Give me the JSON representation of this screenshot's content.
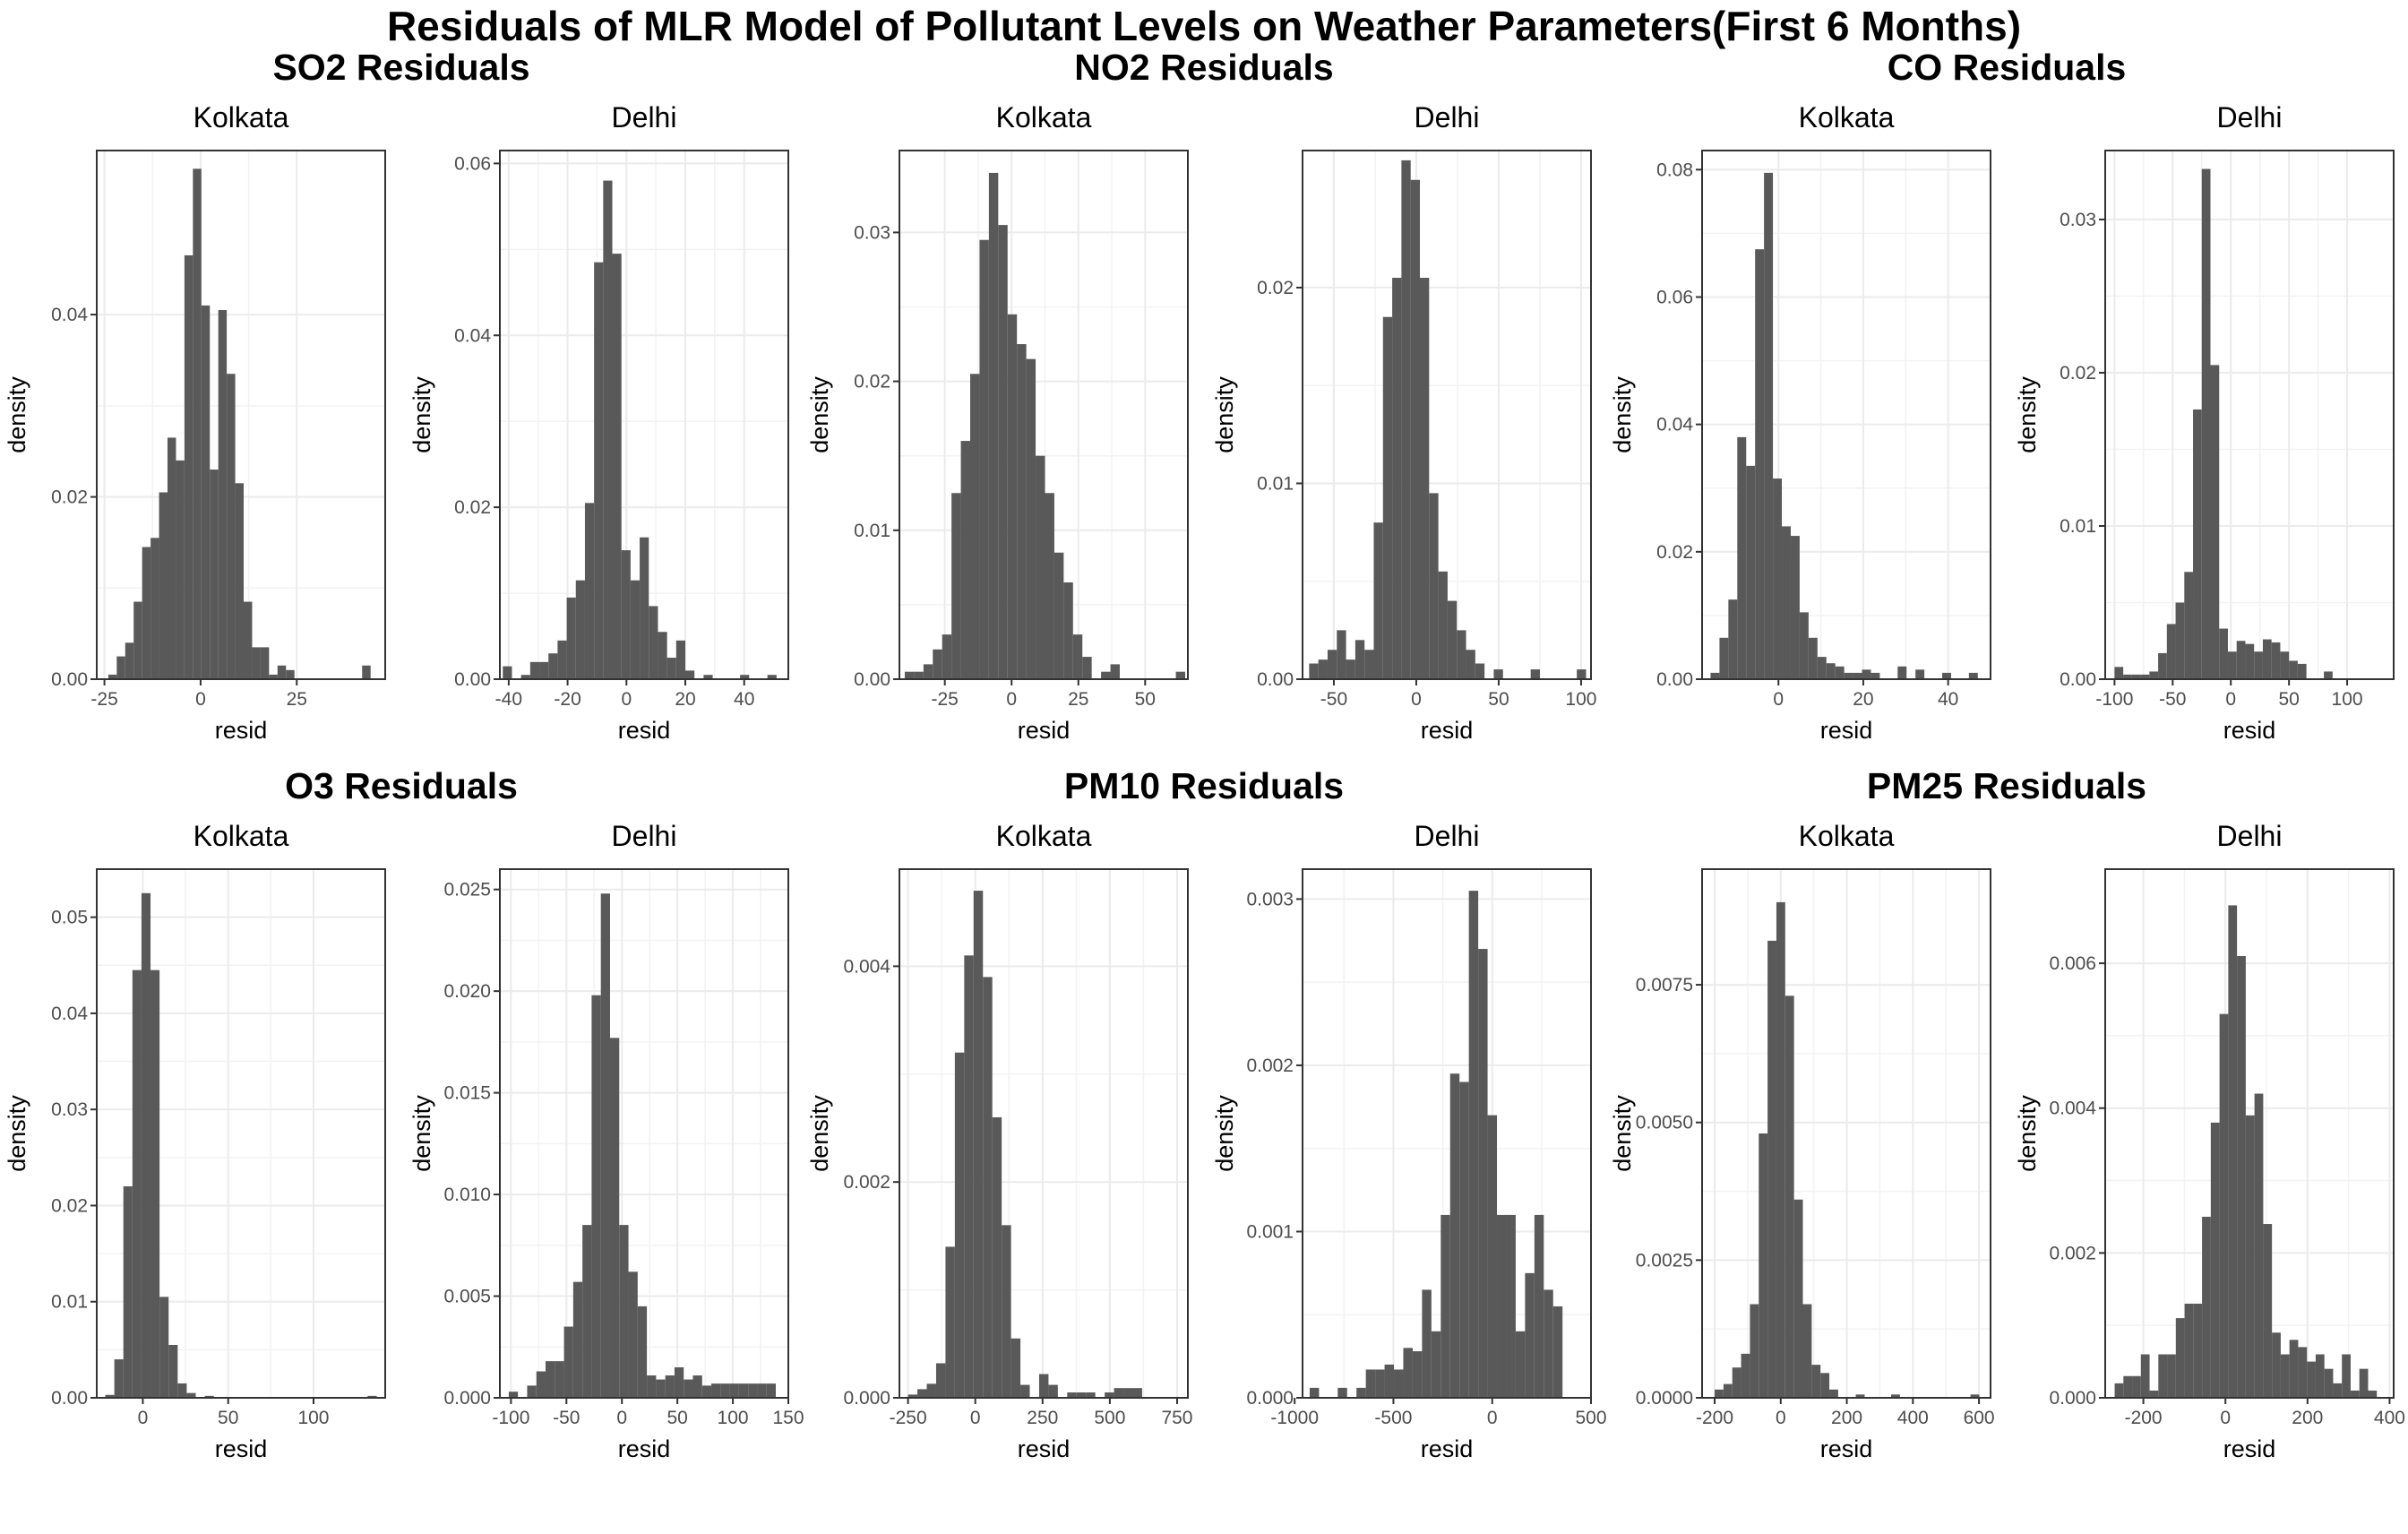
{
  "title": "Residuals of MLR Model of Pollutant Levels on Weather Parameters(First 6 Months)",
  "chart_data": [
    {
      "group_title": "SO2 Residuals",
      "panels": [
        {
          "type": "bar",
          "title": "Kolkata",
          "xlabel": "resid",
          "ylabel": "density",
          "xlim": [
            -27,
            48
          ],
          "ylim": [
            0,
            0.058
          ],
          "xticks": [
            -25,
            0,
            25
          ],
          "xtick_labels": [
            "-25",
            "0",
            "25"
          ],
          "yticks": [
            0,
            0.02,
            0.04
          ],
          "ytick_labels": [
            "0.00",
            "0.02",
            "0.04"
          ],
          "bin_start": -24,
          "bin_width": 2.2,
          "values": [
            0.0005,
            0.0025,
            0.004,
            0.0085,
            0.0145,
            0.0155,
            0.0205,
            0.0265,
            0.024,
            0.0465,
            0.056,
            0.041,
            0.023,
            0.0405,
            0.0335,
            0.0215,
            0.0085,
            0.0035,
            0.0035,
            0.0005,
            0.0015,
            0.001,
            0,
            0,
            0,
            0,
            0,
            0,
            0,
            0,
            0.0015
          ]
        },
        {
          "type": "bar",
          "title": "Delhi",
          "xlabel": "resid",
          "ylabel": "density",
          "xlim": [
            -43,
            55
          ],
          "ylim": [
            0,
            0.0615
          ],
          "xticks": [
            -40,
            -20,
            0,
            20,
            40
          ],
          "xtick_labels": [
            "-40",
            "-20",
            "0",
            "20",
            "40"
          ],
          "yticks": [
            0,
            0.02,
            0.04,
            0.06
          ],
          "ytick_labels": [
            "0.00",
            "0.02",
            "0.04",
            "0.06"
          ],
          "bin_start": -42,
          "bin_width": 3.1,
          "values": [
            0.0015,
            0,
            0.0005,
            0.002,
            0.002,
            0.003,
            0.0045,
            0.0095,
            0.0115,
            0.0205,
            0.0485,
            0.058,
            0.0495,
            0.015,
            0.0115,
            0.0165,
            0.0085,
            0.0055,
            0.0025,
            0.0045,
            0.001,
            0,
            0.0005,
            0,
            0,
            0,
            0.0005,
            0,
            0,
            0.0005
          ]
        }
      ]
    },
    {
      "group_title": "NO2 Residuals",
      "panels": [
        {
          "type": "bar",
          "title": "Kolkata",
          "xlabel": "resid",
          "ylabel": "density",
          "xlim": [
            -42,
            66
          ],
          "ylim": [
            0,
            0.0355
          ],
          "xticks": [
            -25,
            0,
            25,
            50
          ],
          "xtick_labels": [
            "-25",
            "0",
            "25",
            "50"
          ],
          "yticks": [
            0,
            0.01,
            0.02,
            0.03
          ],
          "ytick_labels": [
            "0.00",
            "0.01",
            "0.02",
            "0.03"
          ],
          "bin_start": -40,
          "bin_width": 3.5,
          "values": [
            0.0005,
            0.0005,
            0.001,
            0.002,
            0.003,
            0.0125,
            0.016,
            0.0205,
            0.0295,
            0.034,
            0.0305,
            0.0245,
            0.0225,
            0.0215,
            0.015,
            0.0125,
            0.0085,
            0.0065,
            0.003,
            0.0015,
            0,
            0.0005,
            0.001,
            0,
            0,
            0,
            0,
            0,
            0,
            0.0005
          ]
        },
        {
          "type": "bar",
          "title": "Delhi",
          "xlabel": "resid",
          "ylabel": "density",
          "xlim": [
            -69,
            106
          ],
          "ylim": [
            0,
            0.027
          ],
          "xticks": [
            -50,
            0,
            50,
            100
          ],
          "xtick_labels": [
            "-50",
            "0",
            "50",
            "100"
          ],
          "yticks": [
            0,
            0.01,
            0.02
          ],
          "ytick_labels": [
            "0.00",
            "0.01",
            "0.02"
          ],
          "bin_start": -65,
          "bin_width": 5.6,
          "values": [
            0.0008,
            0.001,
            0.0015,
            0.0025,
            0.001,
            0.002,
            0.0015,
            0.008,
            0.0185,
            0.0205,
            0.0265,
            0.0255,
            0.0205,
            0.0095,
            0.0055,
            0.004,
            0.0025,
            0.0015,
            0.0008,
            0,
            0.0005,
            0,
            0,
            0,
            0.0005,
            0,
            0,
            0,
            0,
            0.0005
          ]
        }
      ]
    },
    {
      "group_title": "CO Residuals",
      "panels": [
        {
          "type": "bar",
          "title": "Kolkata",
          "xlabel": "resid",
          "ylabel": "density",
          "xlim": [
            -18,
            50
          ],
          "ylim": [
            0,
            0.083
          ],
          "xticks": [
            0,
            20,
            40
          ],
          "xtick_labels": [
            "0",
            "20",
            "40"
          ],
          "yticks": [
            0,
            0.02,
            0.04,
            0.06,
            0.08
          ],
          "ytick_labels": [
            "0.00",
            "0.02",
            "0.04",
            "0.06",
            "0.08"
          ],
          "bin_start": -16,
          "bin_width": 2.1,
          "values": [
            0.001,
            0.0065,
            0.0125,
            0.038,
            0.0335,
            0.0675,
            0.0795,
            0.0315,
            0.024,
            0.0225,
            0.0105,
            0.0065,
            0.0035,
            0.0025,
            0.002,
            0.001,
            0.001,
            0.0015,
            0.001,
            0,
            0,
            0.002,
            0,
            0.0015,
            0,
            0,
            0.001,
            0,
            0,
            0.001
          ]
        },
        {
          "type": "bar",
          "title": "Delhi",
          "xlabel": "resid",
          "ylabel": "density",
          "xlim": [
            -108,
            140
          ],
          "ylim": [
            0,
            0.0345
          ],
          "xticks": [
            -100,
            -50,
            0,
            50,
            100
          ],
          "xtick_labels": [
            "-100",
            "-50",
            "0",
            "50",
            "100"
          ],
          "yticks": [
            0,
            0.01,
            0.02,
            0.03
          ],
          "ytick_labels": [
            "0.00",
            "0.01",
            "0.02",
            "0.03"
          ],
          "bin_start": -100,
          "bin_width": 7.5,
          "values": [
            0.0008,
            0.0003,
            0.0003,
            0.0003,
            0.0005,
            0.0017,
            0.0036,
            0.005,
            0.007,
            0.0176,
            0.0333,
            0.0205,
            0.0033,
            0.0018,
            0.0025,
            0.0023,
            0.0018,
            0.0026,
            0.0024,
            0.0018,
            0.0012,
            0.001,
            0,
            0,
            0.0005
          ]
        }
      ]
    },
    {
      "group_title": "O3 Residuals",
      "panels": [
        {
          "type": "bar",
          "title": "Kolkata",
          "xlabel": "resid",
          "ylabel": "density",
          "xlim": [
            -27,
            142
          ],
          "ylim": [
            0,
            0.055
          ],
          "xticks": [
            0,
            50,
            100
          ],
          "xtick_labels": [
            "0",
            "50",
            "100"
          ],
          "yticks": [
            0,
            0.01,
            0.02,
            0.03,
            0.04,
            0.05
          ],
          "ytick_labels": [
            "0.00",
            "0.01",
            "0.02",
            "0.03",
            "0.04",
            "0.05"
          ],
          "bin_start": -22,
          "bin_width": 5.3,
          "values": [
            0.0003,
            0.004,
            0.022,
            0.0445,
            0.0525,
            0.0445,
            0.0105,
            0.0055,
            0.0015,
            0.0005,
            0,
            0.0002,
            0,
            0,
            0,
            0,
            0,
            0,
            0,
            0,
            0,
            0,
            0,
            0,
            0,
            0,
            0,
            0,
            0,
            0.0002
          ]
        },
        {
          "type": "bar",
          "title": "Delhi",
          "xlabel": "resid",
          "ylabel": "density",
          "xlim": [
            -110,
            150
          ],
          "ylim": [
            0,
            0.026
          ],
          "xticks": [
            -100,
            -50,
            0,
            50,
            100,
            150
          ],
          "xtick_labels": [
            "-100",
            "-50",
            "0",
            "50",
            "100",
            "150"
          ],
          "yticks": [
            0,
            0.005,
            0.01,
            0.015,
            0.02,
            0.025
          ],
          "ytick_labels": [
            "0.000",
            "0.005",
            "0.010",
            "0.015",
            "0.020",
            "0.025"
          ],
          "bin_start": -102,
          "bin_width": 8.3,
          "values": [
            0.0003,
            0,
            0.0006,
            0.0013,
            0.0018,
            0.0018,
            0.0035,
            0.0057,
            0.0085,
            0.0198,
            0.0248,
            0.0177,
            0.0085,
            0.0062,
            0.0045,
            0.0011,
            0.0009,
            0.0011,
            0.0015,
            0.0009,
            0.0011,
            0.0006,
            0.0007,
            0.0007,
            0.0007,
            0.0007,
            0.0007,
            0.0007,
            0.0007
          ]
        }
      ]
    },
    {
      "group_title": "PM10 Residuals",
      "panels": [
        {
          "type": "bar",
          "title": "Kolkata",
          "xlabel": "resid",
          "ylabel": "density",
          "xlim": [
            -282,
            790
          ],
          "ylim": [
            0,
            0.0049
          ],
          "xticks": [
            -250,
            0,
            250,
            500,
            750
          ],
          "xtick_labels": [
            "-250",
            "0",
            "250",
            "500",
            "750"
          ],
          "yticks": [
            0,
            0.002,
            0.004
          ],
          "ytick_labels": [
            "0.000",
            "0.002",
            "0.004"
          ],
          "bin_start": -250,
          "bin_width": 34.8,
          "values": [
            3e-05,
            8e-05,
            0.00013,
            0.00032,
            0.0014,
            0.0032,
            0.0041,
            0.0047,
            0.0039,
            0.0026,
            0.0016,
            0.00055,
            0.00012,
            0,
            0.00022,
            0.00012,
            0,
            5e-05,
            5e-05,
            5e-05,
            0,
            5e-05,
            9e-05,
            9e-05,
            9e-05,
            0,
            0,
            0,
            0,
            0
          ]
        },
        {
          "type": "bar",
          "title": "Delhi",
          "xlabel": "resid",
          "ylabel": "density",
          "xlim": [
            -960,
            500
          ],
          "ylim": [
            0,
            0.00318
          ],
          "xticks": [
            -1000,
            -500,
            0,
            500
          ],
          "xtick_labels": [
            "-1000",
            "-500",
            "0",
            "500"
          ],
          "yticks": [
            0,
            0.001,
            0.002,
            0.003
          ],
          "ytick_labels": [
            "0.000",
            "0.001",
            "0.002",
            "0.003"
          ],
          "bin_start": -924,
          "bin_width": 47.4,
          "values": [
            6e-05,
            0,
            0,
            6e-05,
            0,
            6e-05,
            0.00017,
            0.00017,
            0.0002,
            0.00017,
            0.0003,
            0.00028,
            0.00065,
            0.0004,
            0.0011,
            0.00195,
            0.0019,
            0.00305,
            0.0027,
            0.0017,
            0.0011,
            0.0011,
            0.0004,
            0.00075,
            0.0011,
            0.00065,
            0.00055
          ]
        }
      ]
    },
    {
      "group_title": "PM25 Residuals",
      "panels": [
        {
          "type": "bar",
          "title": "Kolkata",
          "xlabel": "resid",
          "ylabel": "density",
          "xlim": [
            -238,
            635
          ],
          "ylim": [
            0,
            0.0096
          ],
          "xticks": [
            -200,
            0,
            200,
            400,
            600
          ],
          "xtick_labels": [
            "-200",
            "0",
            "200",
            "400",
            "600"
          ],
          "yticks": [
            0,
            0.0025,
            0.005,
            0.0075
          ],
          "ytick_labels": [
            "0.0000",
            "0.0025",
            "0.0050",
            "0.0075"
          ],
          "bin_start": -200,
          "bin_width": 26.7,
          "values": [
            0.00015,
            0.00025,
            0.00055,
            0.0008,
            0.0017,
            0.0048,
            0.0083,
            0.009,
            0.0073,
            0.0036,
            0.0017,
            0.0006,
            0.00045,
            0.00015,
            0,
            0,
            6e-05,
            0,
            0,
            0,
            6e-05,
            0,
            0,
            0,
            0,
            0,
            0,
            0,
            0,
            6e-05
          ]
        },
        {
          "type": "bar",
          "title": "Delhi",
          "xlabel": "resid",
          "ylabel": "density",
          "xlim": [
            -293,
            410
          ],
          "ylim": [
            0,
            0.0073
          ],
          "xticks": [
            -200,
            0,
            200,
            400
          ],
          "xtick_labels": [
            "-200",
            "0",
            "200",
            "400"
          ],
          "yticks": [
            0,
            0.002,
            0.004,
            0.006
          ],
          "ytick_labels": [
            "0.000",
            "0.002",
            "0.004",
            "0.006"
          ],
          "bin_start": -270,
          "bin_width": 21.3,
          "values": [
            0.0002,
            0.0003,
            0.0003,
            0.0006,
            0.0001,
            0.0006,
            0.0006,
            0.0011,
            0.0013,
            0.0013,
            0.0025,
            0.0038,
            0.0053,
            0.0068,
            0.0061,
            0.0039,
            0.0042,
            0.0024,
            0.0009,
            0.0006,
            0.0008,
            0.0007,
            0.0005,
            0.0006,
            0.0004,
            0.0002,
            0.0006,
            0.0001,
            0.0004,
            0.0001
          ]
        }
      ]
    }
  ]
}
